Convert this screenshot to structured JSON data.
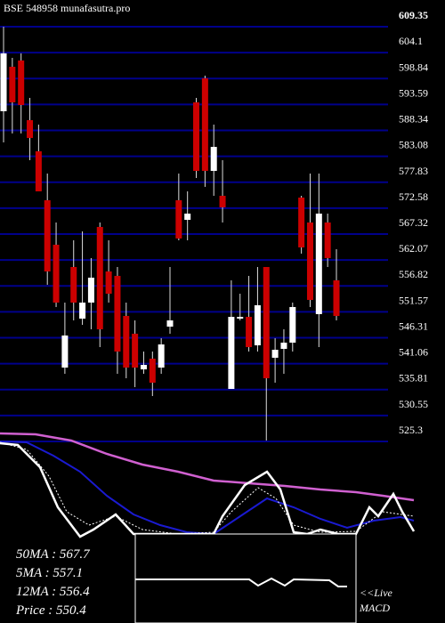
{
  "chart_data": {
    "type": "candlestick",
    "title": "BSE 548958 munafasutra.pro",
    "ylim": [
      525.3,
      609.35
    ],
    "yticks": [
      609.35,
      604.1,
      598.84,
      593.59,
      588.34,
      583.08,
      577.83,
      572.58,
      567.32,
      562.07,
      556.82,
      551.57,
      546.31,
      541.06,
      535.81,
      530.55,
      525.3
    ],
    "grid": true,
    "grid_color": "#00008b",
    "up_color": "#ffffff",
    "down_color": "#cc0000",
    "open": [
      592.22,
      601.23,
      602.5,
      590.41,
      584.1,
      574.18,
      565.16,
      540.27,
      560.65,
      550.19,
      553.44,
      568.77,
      559.75,
      558.85,
      550.73,
      547.13,
      539.91,
      542.08,
      540.27,
      548.57,
      574.18,
      570.21,
      594.02,
      598.89,
      580.13,
      575.08,
      535.94,
      550.19,
      550.55,
      544.78,
      560.65,
      542.26,
      544.06,
      545.32,
      574.72,
      569.67,
      551.1,
      569.67,
      557.95
    ],
    "high": [
      609.35,
      603.04,
      603.94,
      594.92,
      589.51,
      579.59,
      569.67,
      553.44,
      566.06,
      567.87,
      562.46,
      569.67,
      566.06,
      560.65,
      553.44,
      549.83,
      543.52,
      543.52,
      546.22,
      560.65,
      579.59,
      575.98,
      594.92,
      599.43,
      589.51,
      582.3,
      557.95,
      555.24,
      558.85,
      560.65,
      560.65,
      546.22,
      548.03,
      553.44,
      575.08,
      579.59,
      579.59,
      571.47,
      564.26
    ],
    "low": [
      585.9,
      587.71,
      587.71,
      582.3,
      575.98,
      557.05,
      552.54,
      539.01,
      549.83,
      548.93,
      548.03,
      544.42,
      553.44,
      539.01,
      538.11,
      536.31,
      539.01,
      534.5,
      539.01,
      547.13,
      566.06,
      566.06,
      578.69,
      576.89,
      575.08,
      569.67,
      535.94,
      549.83,
      543.52,
      543.52,
      525.48,
      537.21,
      539.01,
      543.52,
      563.36,
      552.54,
      544.42,
      560.65,
      549.83
    ],
    "close": [
      603.94,
      594.02,
      593.48,
      586.8,
      575.98,
      559.75,
      553.44,
      546.77,
      553.44,
      553.44,
      558.49,
      548.03,
      555.24,
      543.52,
      540.27,
      540.27,
      540.81,
      537.21,
      544.96,
      549.83,
      566.43,
      571.47,
      580.13,
      580.13,
      584.99,
      572.74,
      550.55,
      550.55,
      544.42,
      552.9,
      538.11,
      543.88,
      545.32,
      552.54,
      564.62,
      553.98,
      571.47,
      562.46,
      550.73
    ],
    "legend": [
      "50MA : 567.7",
      "5MA : 557.1",
      "12MA : 556.4",
      "Price  : 550.4"
    ],
    "live": "<<Live",
    "macd": "MACD"
  }
}
